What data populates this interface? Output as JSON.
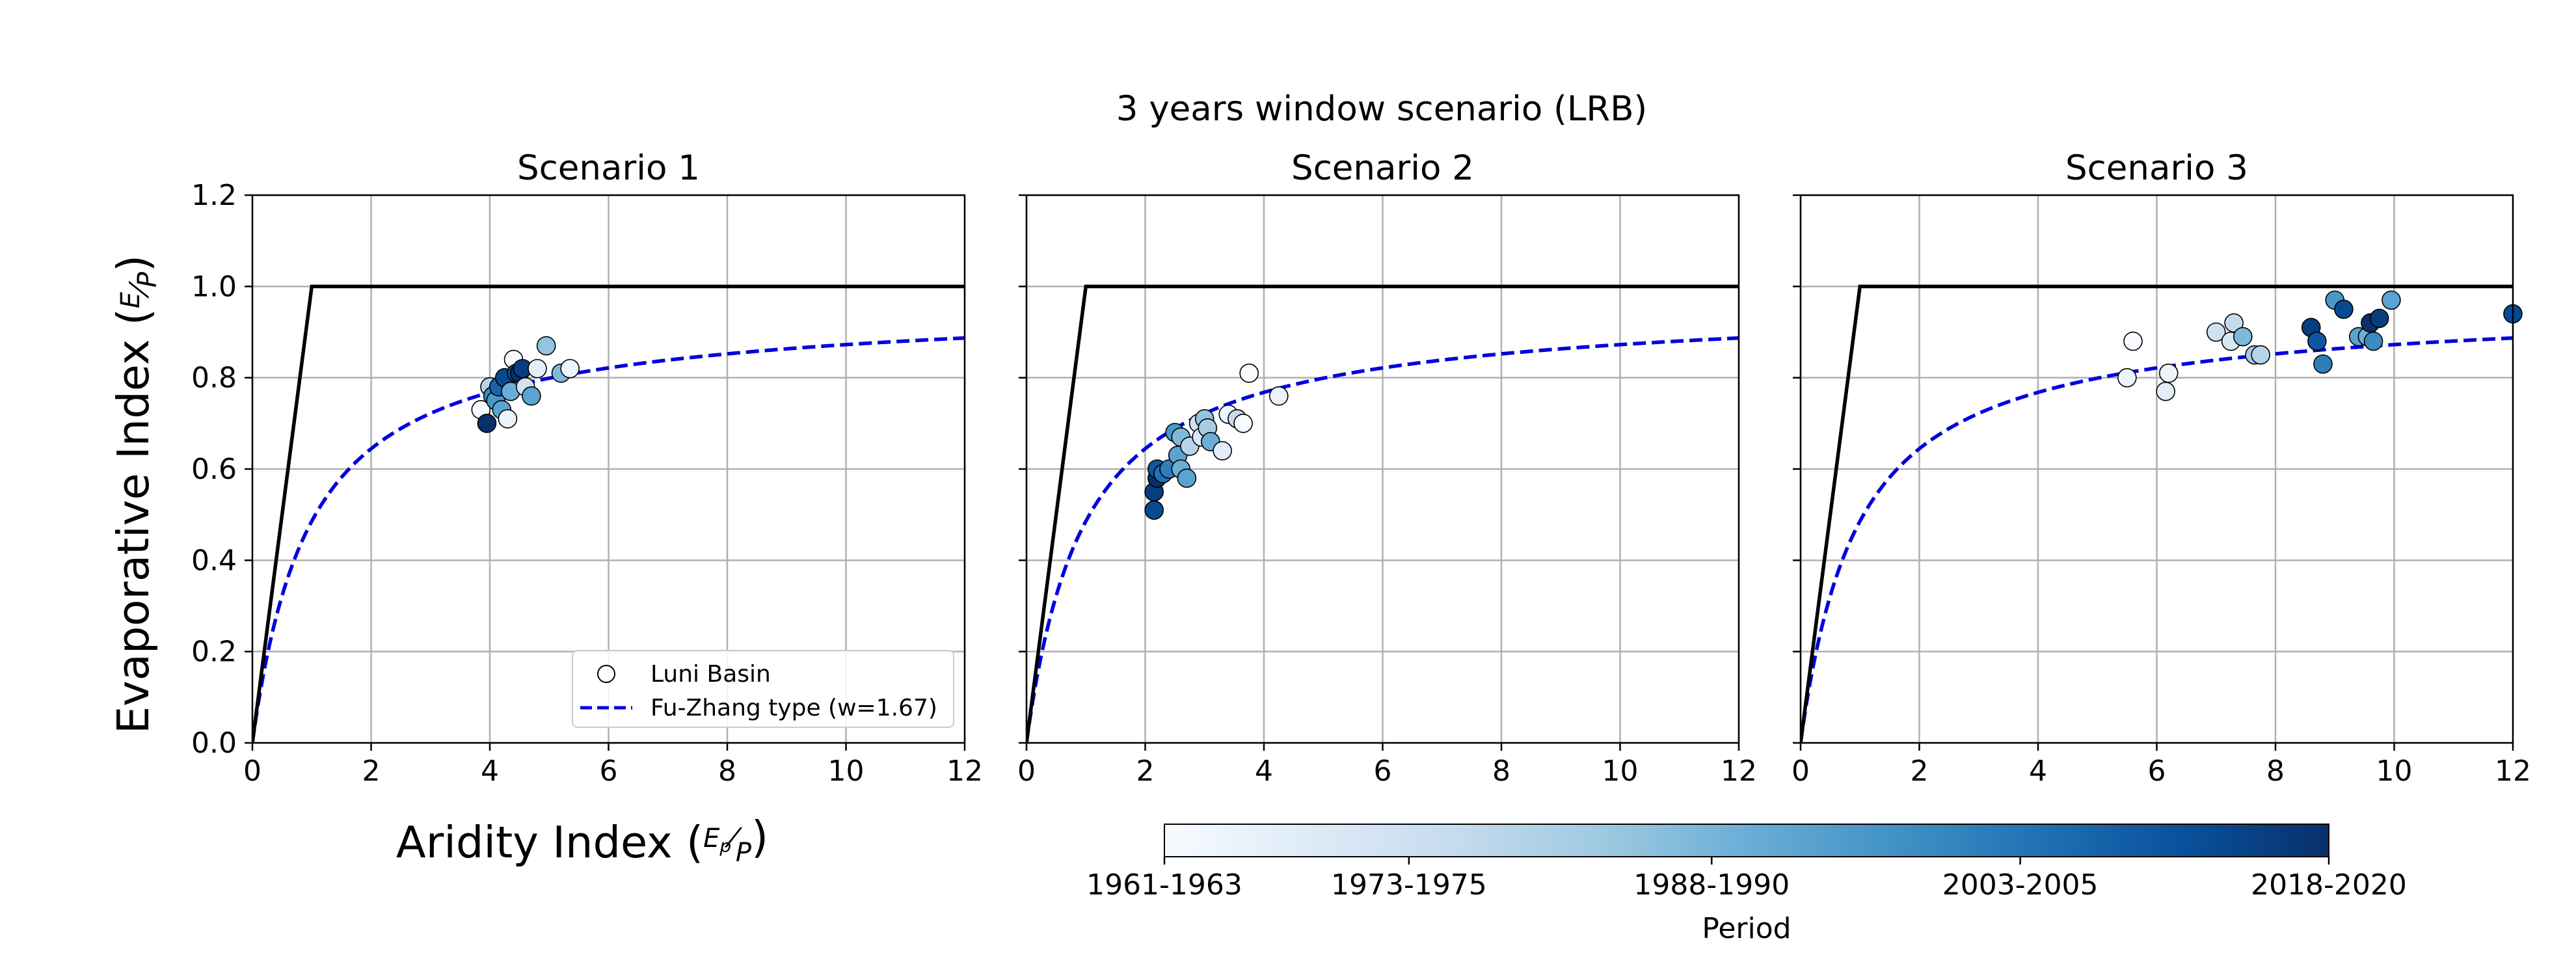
{
  "figure": {
    "suptitle": "3 years window scenario (LRB)",
    "ylabel": "Evaporative Index",
    "ylabel_frac": {
      "num": "E",
      "den": "P"
    },
    "xlabel": "Aridity Index",
    "xlabel_frac": {
      "num": "E",
      "num_sub": "p",
      "den": "P"
    }
  },
  "legend": {
    "items": [
      {
        "label": "Luni Basin",
        "marker": "circle-hollow"
      },
      {
        "label": "Fu-Zhang type (w=1.67)",
        "marker": "dashed-line",
        "color": "#0000dd"
      }
    ]
  },
  "colorbar": {
    "label": "Period",
    "ticks": [
      "1961-1963",
      "1973-1975",
      "1988-1990",
      "2003-2005",
      "2018-2020"
    ],
    "tick_positions": [
      0,
      0.21,
      0.47,
      0.735,
      1
    ],
    "colormap": "Blues",
    "color_stops": [
      "#f7fbff",
      "#deebf7",
      "#c6dbef",
      "#9ecae1",
      "#6baed6",
      "#4292c6",
      "#2171b5",
      "#08519c",
      "#08306b"
    ]
  },
  "colors": {
    "fu_curve": "#0000dd",
    "limit_line": "#000000",
    "grid": "#b0b0b0",
    "point_edge": "#000000"
  },
  "chart_data": [
    {
      "type": "scatter",
      "title": "Scenario 1",
      "xlabel": "Aridity Index",
      "ylabel": "Evaporative Index",
      "xlim": [
        0,
        12
      ],
      "ylim": [
        0,
        1.2
      ],
      "xticks": [
        "0",
        "2",
        "4",
        "6",
        "8",
        "10",
        "12"
      ],
      "yticks": [
        "0.0",
        "0.2",
        "0.4",
        "0.6",
        "0.8",
        "1.0",
        "1.2"
      ],
      "grid": true,
      "legend_position": "lower-right",
      "limit_line": {
        "name": "energy/water limit",
        "x": [
          0,
          1,
          12
        ],
        "y": [
          0,
          1,
          1
        ]
      },
      "fu_zhang_w": 1.67,
      "series": [
        {
          "name": "Luni Basin",
          "x": [
            3.85,
            3.95,
            4.0,
            4.05,
            4.1,
            4.15,
            4.2,
            4.25,
            4.3,
            4.35,
            4.4,
            4.45,
            4.5,
            4.55,
            4.6,
            4.7,
            4.8,
            4.95,
            5.2,
            5.35
          ],
          "y": [
            0.73,
            0.7,
            0.78,
            0.76,
            0.75,
            0.78,
            0.73,
            0.8,
            0.71,
            0.77,
            0.84,
            0.81,
            0.81,
            0.82,
            0.78,
            0.76,
            0.82,
            0.87,
            0.81,
            0.82
          ],
          "period": [
            0.0,
            1.0,
            0.3,
            0.65,
            0.6,
            0.8,
            0.55,
            0.9,
            0.05,
            0.5,
            0.0,
            0.85,
            1.0,
            0.95,
            0.2,
            0.55,
            0.1,
            0.4,
            0.45,
            0.05
          ]
        }
      ]
    },
    {
      "type": "scatter",
      "title": "Scenario 2",
      "xlabel": "Aridity Index",
      "ylabel": "Evaporative Index",
      "xlim": [
        0,
        12
      ],
      "ylim": [
        0,
        1.2
      ],
      "xticks": [
        "0",
        "2",
        "4",
        "6",
        "8",
        "10",
        "12"
      ],
      "yticks": [
        "0.0",
        "0.2",
        "0.4",
        "0.6",
        "0.8",
        "1.0",
        "1.2"
      ],
      "grid": true,
      "limit_line": {
        "name": "energy/water limit",
        "x": [
          0,
          1,
          12
        ],
        "y": [
          0,
          1,
          1
        ]
      },
      "fu_zhang_w": 1.67,
      "series": [
        {
          "name": "Luni Basin",
          "x": [
            2.15,
            2.15,
            2.2,
            2.2,
            2.3,
            2.4,
            2.5,
            2.55,
            2.6,
            2.6,
            2.7,
            2.75,
            2.9,
            2.95,
            3.0,
            3.05,
            3.1,
            3.3,
            3.4,
            3.55,
            3.65,
            3.75,
            4.25
          ],
          "y": [
            0.51,
            0.55,
            0.58,
            0.6,
            0.59,
            0.6,
            0.68,
            0.63,
            0.6,
            0.67,
            0.58,
            0.65,
            0.7,
            0.67,
            0.71,
            0.69,
            0.66,
            0.64,
            0.72,
            0.71,
            0.7,
            0.81,
            0.76
          ]
        }
      ],
      "period_note": "color by period per point",
      "period": [
        0.9,
        0.95,
        1.0,
        0.85,
        0.75,
        0.7,
        0.6,
        0.55,
        0.5,
        0.45,
        0.55,
        0.3,
        0.2,
        0.15,
        0.4,
        0.35,
        0.5,
        0.1,
        0.05,
        0.25,
        0.0,
        0.0,
        0.05
      ]
    },
    {
      "type": "scatter",
      "title": "Scenario 3",
      "xlabel": "Aridity Index",
      "ylabel": "Evaporative Index",
      "xlim": [
        0,
        12
      ],
      "ylim": [
        0,
        1.2
      ],
      "xticks": [
        "0",
        "2",
        "4",
        "6",
        "8",
        "10",
        "12"
      ],
      "yticks": [
        "0.0",
        "0.2",
        "0.4",
        "0.6",
        "0.8",
        "1.0",
        "1.2"
      ],
      "grid": true,
      "limit_line": {
        "name": "energy/water limit",
        "x": [
          0,
          1,
          12
        ],
        "y": [
          0,
          1,
          1
        ]
      },
      "fu_zhang_w": 1.67,
      "series": [
        {
          "name": "Luni Basin",
          "x": [
            5.5,
            5.6,
            6.15,
            6.2,
            7.0,
            7.25,
            7.3,
            7.45,
            7.65,
            7.75,
            8.6,
            8.7,
            8.8,
            9.0,
            9.15,
            9.4,
            9.55,
            9.6,
            9.65,
            9.75,
            9.95,
            12.0
          ],
          "y": [
            0.8,
            0.88,
            0.77,
            0.81,
            0.9,
            0.88,
            0.92,
            0.89,
            0.85,
            0.85,
            0.91,
            0.88,
            0.83,
            0.97,
            0.95,
            0.89,
            0.89,
            0.92,
            0.88,
            0.93,
            0.97,
            0.94
          ]
        }
      ],
      "period": [
        0.05,
        0.0,
        0.1,
        0.05,
        0.2,
        0.15,
        0.25,
        0.45,
        0.35,
        0.3,
        0.95,
        0.85,
        0.7,
        0.6,
        0.9,
        0.55,
        0.5,
        1.0,
        0.65,
        0.95,
        0.55,
        0.9
      ]
    }
  ]
}
